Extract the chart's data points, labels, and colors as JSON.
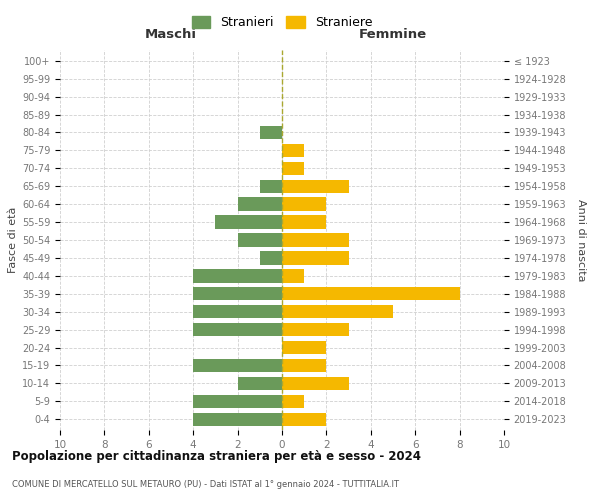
{
  "age_groups": [
    "0-4",
    "5-9",
    "10-14",
    "15-19",
    "20-24",
    "25-29",
    "30-34",
    "35-39",
    "40-44",
    "45-49",
    "50-54",
    "55-59",
    "60-64",
    "65-69",
    "70-74",
    "75-79",
    "80-84",
    "85-89",
    "90-94",
    "95-99",
    "100+"
  ],
  "birth_years": [
    "2019-2023",
    "2014-2018",
    "2009-2013",
    "2004-2008",
    "1999-2003",
    "1994-1998",
    "1989-1993",
    "1984-1988",
    "1979-1983",
    "1974-1978",
    "1969-1973",
    "1964-1968",
    "1959-1963",
    "1954-1958",
    "1949-1953",
    "1944-1948",
    "1939-1943",
    "1934-1938",
    "1929-1933",
    "1924-1928",
    "≤ 1923"
  ],
  "maschi": [
    4,
    4,
    2,
    4,
    0,
    4,
    4,
    4,
    4,
    1,
    2,
    3,
    2,
    1,
    0,
    0,
    1,
    0,
    0,
    0,
    0
  ],
  "femmine": [
    2,
    1,
    3,
    2,
    2,
    3,
    5,
    8,
    1,
    3,
    3,
    2,
    2,
    3,
    1,
    1,
    0,
    0,
    0,
    0,
    0
  ],
  "color_maschi": "#6a9a5a",
  "color_femmine": "#f5b800",
  "title": "Popolazione per cittadinanza straniera per età e sesso - 2024",
  "subtitle": "COMUNE DI MERCATELLO SUL METAURO (PU) - Dati ISTAT al 1° gennaio 2024 - TUTTITALIA.IT",
  "xlabel_left": "Maschi",
  "xlabel_right": "Femmine",
  "ylabel_left": "Fasce di età",
  "ylabel_right": "Anni di nascita",
  "legend_maschi": "Stranieri",
  "legend_femmine": "Straniere",
  "xlim": 10,
  "background_color": "#ffffff",
  "grid_color": "#d0d0d0",
  "dashed_line_color": "#aaa830"
}
